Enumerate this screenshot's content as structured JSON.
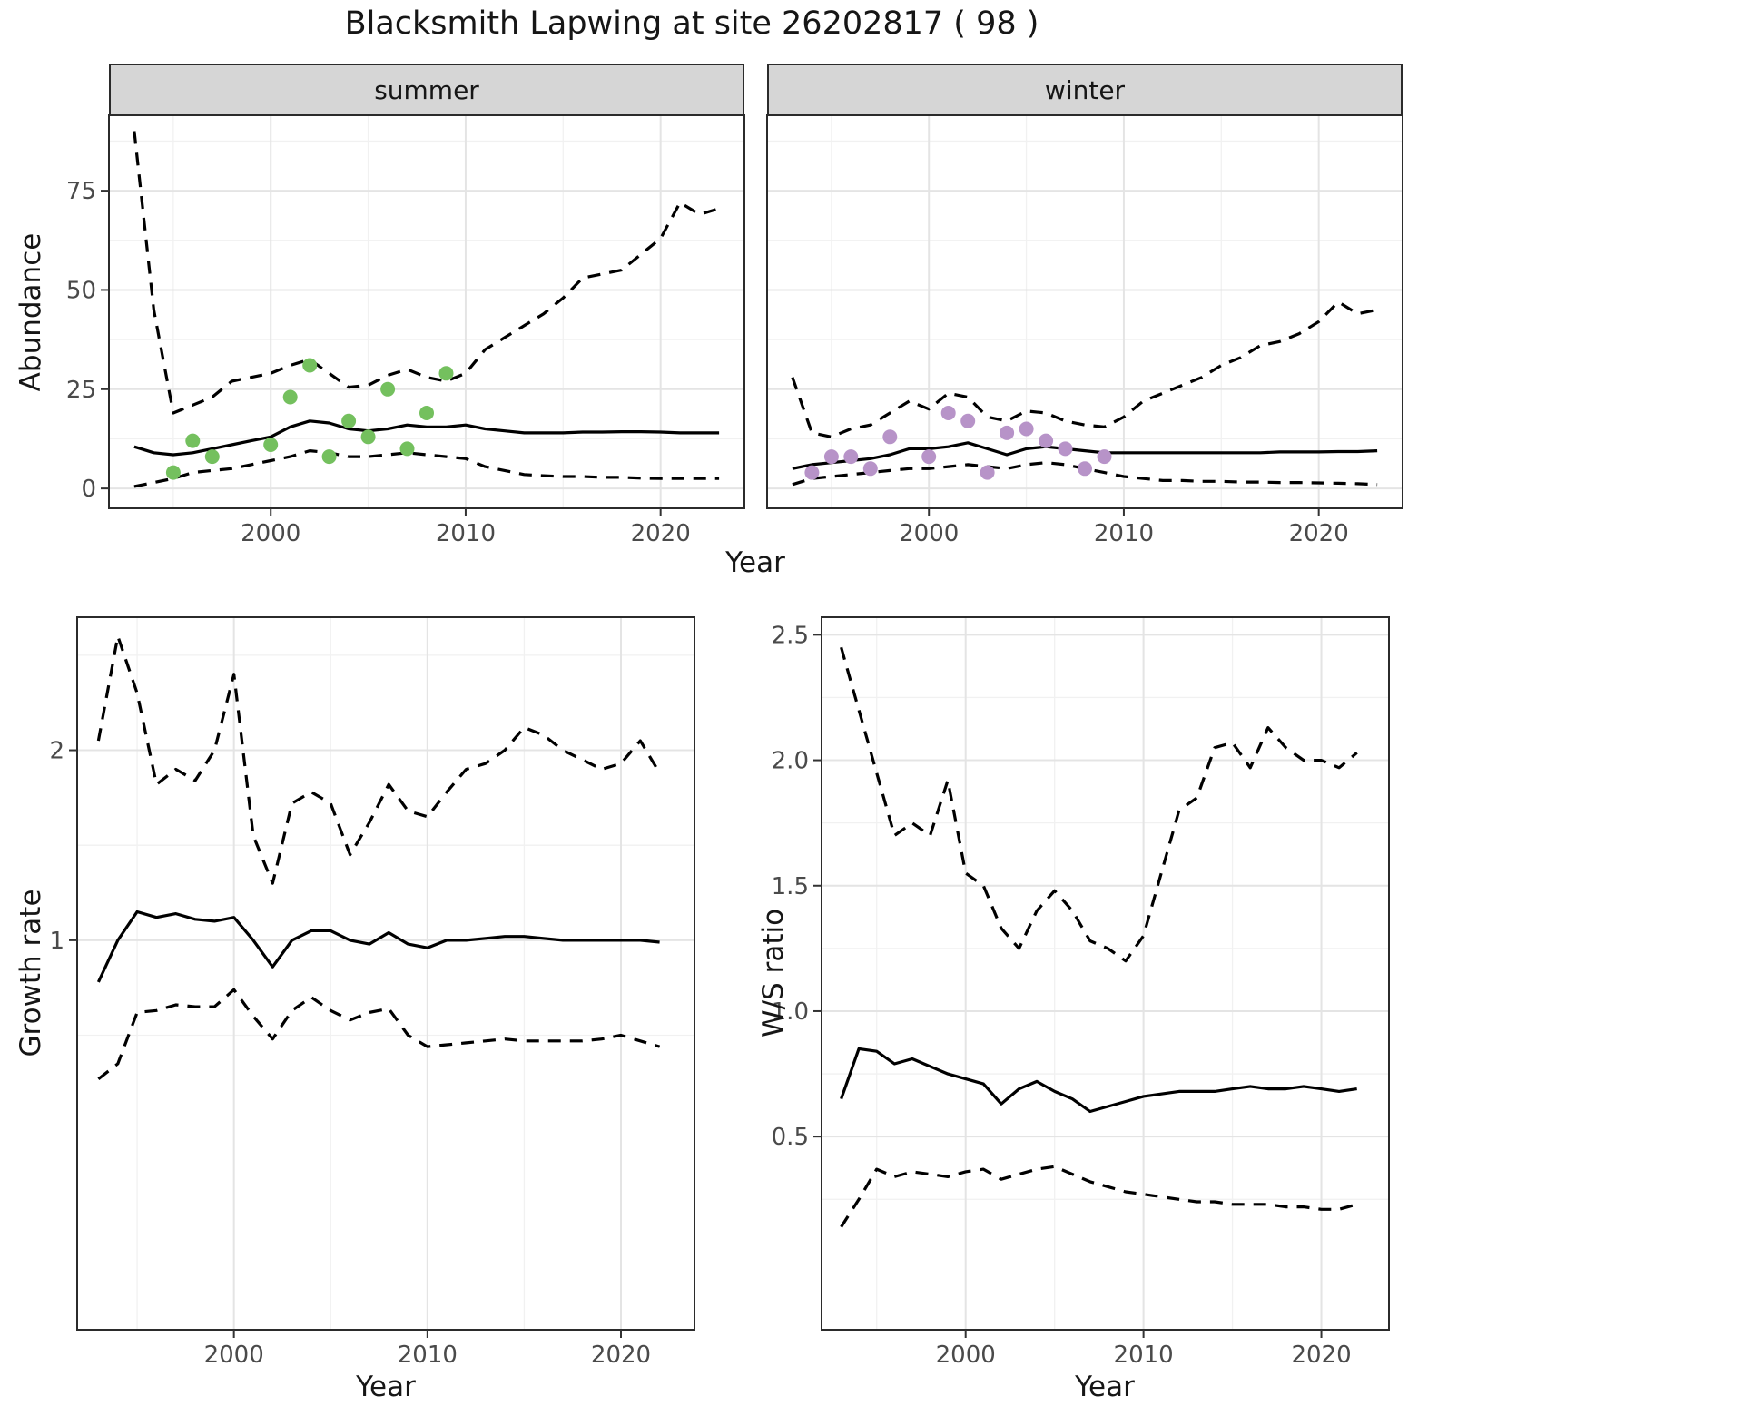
{
  "title": "Blacksmith Lapwing at site 26202817 ( 98 )",
  "facets": {
    "summer": "summer",
    "winter": "winter"
  },
  "axis_labels": {
    "abundance": "Abundance",
    "year": "Year",
    "growth_rate": "Growth rate",
    "ws_ratio": "W/S ratio"
  },
  "colors": {
    "summer_points": "#74c05e",
    "winter_points": "#b793c8",
    "line": "#000000",
    "grid_major": "#e4e4e4",
    "grid_minor": "#f1f1f1",
    "strip_bg": "#d6d6d6",
    "panel_border": "#2b2b2b"
  },
  "chart_data": [
    {
      "id": "abundance-summer",
      "type": "line",
      "facet": "summer",
      "xlabel": "Year",
      "ylabel": "Abundance",
      "xlim": [
        1991.7,
        2024.3
      ],
      "ylim": [
        -5,
        94
      ],
      "xticks": [
        2000,
        2010,
        2020
      ],
      "xtick_labels": [
        "2000",
        "2010",
        "2020"
      ],
      "yticks": [
        0,
        25,
        50,
        75
      ],
      "ytick_labels": [
        "0",
        "25",
        "50",
        "75"
      ],
      "x": [
        1993,
        1994,
        1995,
        1996,
        1997,
        1998,
        1999,
        2000,
        2001,
        2002,
        2003,
        2004,
        2005,
        2006,
        2007,
        2008,
        2009,
        2010,
        2011,
        2012,
        2013,
        2014,
        2015,
        2016,
        2017,
        2018,
        2019,
        2020,
        2021,
        2022,
        2023
      ],
      "series": [
        {
          "name": "median",
          "style": "solid",
          "values": [
            10.5,
            9,
            8.5,
            9,
            10,
            11,
            12,
            13,
            15.5,
            17,
            16.5,
            15,
            14.5,
            15,
            16,
            15.5,
            15.5,
            16,
            15,
            14.5,
            14,
            14,
            14,
            14.2,
            14.2,
            14.3,
            14.3,
            14.2,
            14,
            14,
            14
          ]
        },
        {
          "name": "upper-ci",
          "style": "dashed",
          "values": [
            90,
            45,
            19,
            21,
            23,
            27,
            28,
            29,
            31,
            32.5,
            29,
            25.5,
            26,
            28.5,
            30,
            28,
            27,
            29,
            35,
            38,
            41,
            44,
            48,
            53,
            54,
            55,
            59,
            63,
            72,
            69,
            70.5
          ]
        },
        {
          "name": "lower-ci",
          "style": "dashed",
          "values": [
            0.5,
            1.5,
            2.5,
            4,
            4.5,
            5,
            6,
            7,
            8,
            9.5,
            9,
            8,
            8,
            8.5,
            9,
            8.5,
            8,
            7.5,
            5.5,
            4.5,
            3.5,
            3.2,
            3,
            3,
            2.8,
            2.8,
            2.6,
            2.5,
            2.5,
            2.5,
            2.5
          ]
        }
      ],
      "points": {
        "name": "observed-count",
        "color_key": "summer_points",
        "x": [
          1995,
          1996,
          1997,
          2000,
          2001,
          2002,
          2003,
          2004,
          2005,
          2006,
          2007,
          2008,
          2009
        ],
        "y": [
          4,
          12,
          8,
          11,
          23,
          31,
          8,
          17,
          13,
          25,
          10,
          19,
          29
        ]
      }
    },
    {
      "id": "abundance-winter",
      "type": "line",
      "facet": "winter",
      "xlabel": "Year",
      "ylabel": "Abundance",
      "xlim": [
        1991.7,
        2024.3
      ],
      "ylim": [
        -5,
        94
      ],
      "xticks": [
        2000,
        2010,
        2020
      ],
      "xtick_labels": [
        "2000",
        "2010",
        "2020"
      ],
      "yticks": [
        0,
        25,
        50,
        75
      ],
      "ytick_labels": [
        "0",
        "25",
        "50",
        "75"
      ],
      "x": [
        1993,
        1994,
        1995,
        1996,
        1997,
        1998,
        1999,
        2000,
        2001,
        2002,
        2003,
        2004,
        2005,
        2006,
        2007,
        2008,
        2009,
        2010,
        2011,
        2012,
        2013,
        2014,
        2015,
        2016,
        2017,
        2018,
        2019,
        2020,
        2021,
        2022,
        2023
      ],
      "series": [
        {
          "name": "median",
          "style": "solid",
          "values": [
            5,
            6,
            6.5,
            7,
            7.5,
            8.5,
            10,
            10,
            10.5,
            11.5,
            10,
            8.5,
            10,
            10.5,
            10,
            9.5,
            9,
            9,
            9,
            9,
            9,
            9,
            9,
            9,
            9,
            9.2,
            9.2,
            9.2,
            9.3,
            9.3,
            9.5
          ]
        },
        {
          "name": "upper-ci",
          "style": "dashed",
          "values": [
            28,
            14,
            13,
            15,
            16,
            19,
            22,
            20,
            24,
            23,
            18,
            17,
            19.5,
            19,
            17,
            16,
            15.5,
            18,
            22,
            24,
            26,
            28,
            31,
            33,
            36,
            37,
            39,
            42,
            47,
            44,
            45
          ]
        },
        {
          "name": "lower-ci",
          "style": "dashed",
          "values": [
            1,
            2.5,
            3,
            3.5,
            4,
            4.5,
            5,
            5,
            5.5,
            6,
            5.5,
            5,
            6,
            6.5,
            6,
            5,
            4,
            3,
            2.5,
            2,
            2,
            1.8,
            1.8,
            1.6,
            1.6,
            1.5,
            1.5,
            1.4,
            1.3,
            1.2,
            1
          ]
        }
      ],
      "points": {
        "name": "observed-count",
        "color_key": "winter_points",
        "x": [
          1994,
          1995,
          1996,
          1997,
          1998,
          2000,
          2001,
          2002,
          2003,
          2004,
          2005,
          2006,
          2007,
          2008,
          2009
        ],
        "y": [
          4,
          8,
          8,
          5,
          13,
          8,
          19,
          17,
          4,
          14,
          15,
          12,
          10,
          5,
          8
        ]
      }
    },
    {
      "id": "growth-rate",
      "type": "line",
      "xlabel": "Year",
      "ylabel": "Growth rate",
      "xlim": [
        1991.9,
        2023.8
      ],
      "ylim": [
        -1.05,
        2.7
      ],
      "xticks": [
        2000,
        2010,
        2020
      ],
      "xtick_labels": [
        "2000",
        "2010",
        "2020"
      ],
      "yticks": [
        1,
        2
      ],
      "ytick_labels": [
        "1",
        "2"
      ],
      "x": [
        1993,
        1994,
        1995,
        1996,
        1997,
        1998,
        1999,
        2000,
        2001,
        2002,
        2003,
        2004,
        2005,
        2006,
        2007,
        2008,
        2009,
        2010,
        2011,
        2012,
        2013,
        2014,
        2015,
        2016,
        2017,
        2018,
        2019,
        2020,
        2021,
        2022
      ],
      "series": [
        {
          "name": "median",
          "style": "solid",
          "values": [
            0.78,
            1.0,
            1.15,
            1.12,
            1.14,
            1.11,
            1.1,
            1.12,
            1.0,
            0.86,
            1.0,
            1.05,
            1.05,
            1.0,
            0.98,
            1.04,
            0.98,
            0.96,
            1.0,
            1.0,
            1.01,
            1.02,
            1.02,
            1.01,
            1.0,
            1.0,
            1.0,
            1.0,
            1.0,
            0.99
          ]
        },
        {
          "name": "upper-ci",
          "style": "dashed",
          "values": [
            2.05,
            2.6,
            2.3,
            1.82,
            1.9,
            1.84,
            2.0,
            2.4,
            1.55,
            1.3,
            1.72,
            1.78,
            1.72,
            1.45,
            1.62,
            1.82,
            1.68,
            1.65,
            1.78,
            1.9,
            1.93,
            2.0,
            2.12,
            2.08,
            2.0,
            1.95,
            1.9,
            1.93,
            2.05,
            1.88
          ]
        },
        {
          "name": "lower-ci",
          "style": "dashed",
          "values": [
            0.27,
            0.35,
            0.62,
            0.63,
            0.66,
            0.65,
            0.65,
            0.74,
            0.6,
            0.48,
            0.63,
            0.7,
            0.63,
            0.58,
            0.62,
            0.64,
            0.5,
            0.44,
            0.45,
            0.46,
            0.47,
            0.48,
            0.47,
            0.47,
            0.47,
            0.47,
            0.48,
            0.5,
            0.47,
            0.44
          ]
        }
      ]
    },
    {
      "id": "ws-ratio",
      "type": "line",
      "xlabel": "Year",
      "ylabel": "W/S ratio",
      "xlim": [
        1991.9,
        2023.8
      ],
      "ylim": [
        -0.27,
        2.57
      ],
      "xticks": [
        2000,
        2010,
        2020
      ],
      "xtick_labels": [
        "2000",
        "2010",
        "2020"
      ],
      "yticks": [
        0.5,
        1.0,
        1.5,
        2.0,
        2.5
      ],
      "ytick_labels": [
        "0.5",
        "1.0",
        "1.5",
        "2.0",
        "2.5"
      ],
      "x": [
        1993,
        1994,
        1995,
        1996,
        1997,
        1998,
        1999,
        2000,
        2001,
        2002,
        2003,
        2004,
        2005,
        2006,
        2007,
        2008,
        2009,
        2010,
        2011,
        2012,
        2013,
        2014,
        2015,
        2016,
        2017,
        2018,
        2019,
        2020,
        2021,
        2022
      ],
      "series": [
        {
          "name": "median",
          "style": "solid",
          "values": [
            0.65,
            0.85,
            0.84,
            0.79,
            0.81,
            0.78,
            0.75,
            0.73,
            0.71,
            0.63,
            0.69,
            0.72,
            0.68,
            0.65,
            0.6,
            0.62,
            0.64,
            0.66,
            0.67,
            0.68,
            0.68,
            0.68,
            0.69,
            0.7,
            0.69,
            0.69,
            0.7,
            0.69,
            0.68,
            0.69
          ]
        },
        {
          "name": "upper-ci",
          "style": "dashed",
          "values": [
            2.45,
            2.2,
            1.95,
            1.7,
            1.75,
            1.7,
            1.92,
            1.55,
            1.5,
            1.33,
            1.25,
            1.4,
            1.48,
            1.4,
            1.28,
            1.25,
            1.2,
            1.3,
            1.55,
            1.8,
            1.85,
            2.05,
            2.07,
            1.97,
            2.13,
            2.05,
            2.0,
            2.0,
            1.97,
            2.03
          ]
        },
        {
          "name": "lower-ci",
          "style": "dashed",
          "values": [
            0.14,
            0.25,
            0.37,
            0.34,
            0.36,
            0.35,
            0.34,
            0.36,
            0.37,
            0.33,
            0.35,
            0.37,
            0.38,
            0.35,
            0.32,
            0.3,
            0.28,
            0.27,
            0.26,
            0.25,
            0.24,
            0.24,
            0.23,
            0.23,
            0.23,
            0.22,
            0.22,
            0.21,
            0.21,
            0.23
          ]
        }
      ]
    }
  ]
}
